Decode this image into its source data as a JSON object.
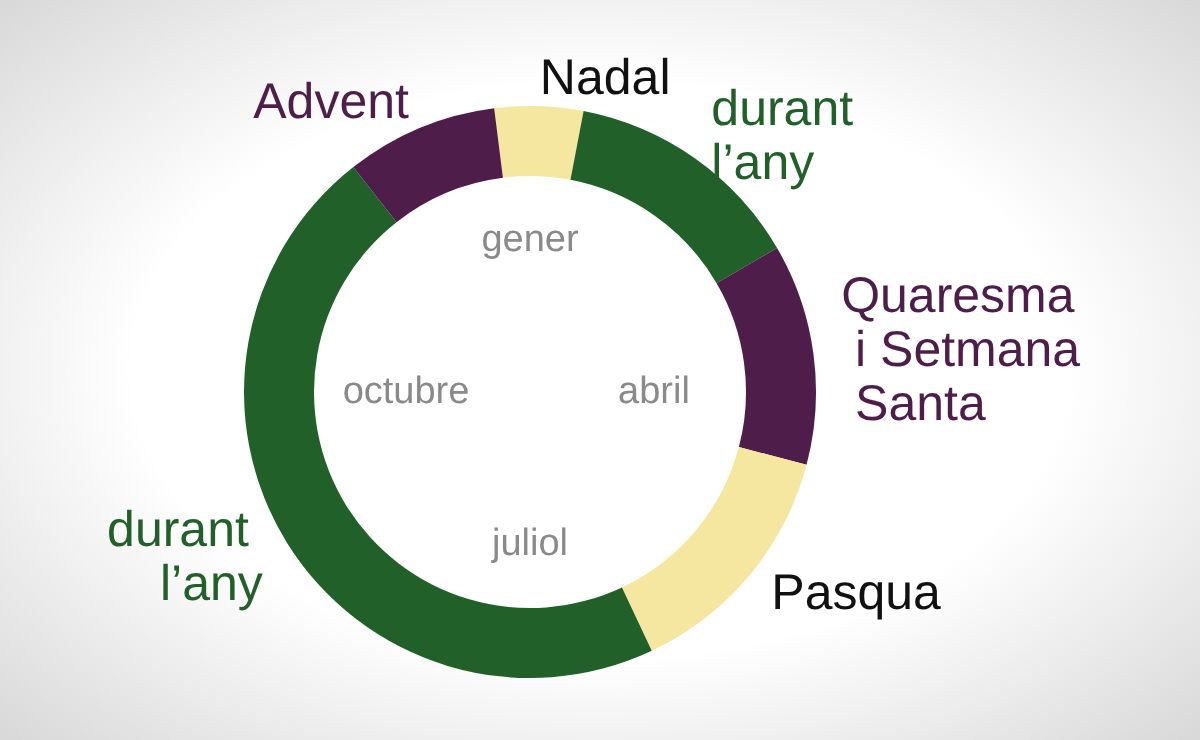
{
  "chart_data": {
    "type": "donut",
    "categories": [
      "Nadal",
      "durant l’any",
      "Quaresma i Setmana Santa",
      "Pasqua",
      "durant l’any",
      "Advent"
    ],
    "values": [
      5,
      13.6,
      12.5,
      13.9,
      46.4,
      8.6
    ],
    "colors": [
      "#f5e6a0",
      "#22602a",
      "#4e1d4a",
      "#f5e6a0",
      "#22602a",
      "#4e1d4a"
    ],
    "annotations": [
      "gener",
      "abril",
      "juliol",
      "octubre"
    ],
    "legend": false
  }
}
